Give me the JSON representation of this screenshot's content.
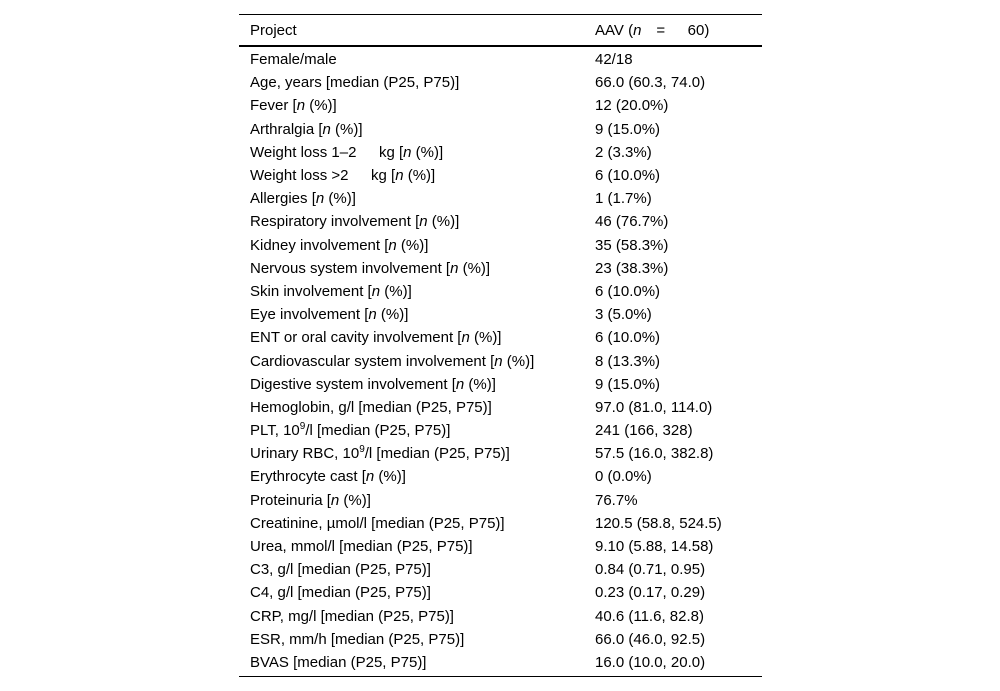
{
  "page": {
    "background_color": "#ffffff",
    "text_color": "#000000",
    "rule_color": "#000000"
  },
  "table": {
    "header": {
      "col1": "Project",
      "col2": "AAV (*n*  =   60)"
    },
    "rows": [
      {
        "label": "Female/male",
        "value": "42/18"
      },
      {
        "label": "Age, years [median (P25, P75)]",
        "value": "66.0 (60.3, 74.0)"
      },
      {
        "label": "Fever [*n* (%)]",
        "value": "12 (20.0%)"
      },
      {
        "label": "Arthralgia [*n* (%)]",
        "value": "9 (15.0%)"
      },
      {
        "label": "Weight loss 1–2   kg [*n* (%)]",
        "value": "2 (3.3%)"
      },
      {
        "label": "Weight loss >2   kg [*n* (%)]",
        "value": "6 (10.0%)"
      },
      {
        "label": "Allergies [*n* (%)]",
        "value": "1 (1.7%)"
      },
      {
        "label": "Respiratory involvement [*n* (%)]",
        "value": "46 (76.7%)"
      },
      {
        "label": "Kidney involvement [*n* (%)]",
        "value": "35 (58.3%)"
      },
      {
        "label": "Nervous system involvement [*n* (%)]",
        "value": "23 (38.3%)"
      },
      {
        "label": "Skin involvement [*n* (%)]",
        "value": "6 (10.0%)"
      },
      {
        "label": "Eye involvement [*n* (%)]",
        "value": "3 (5.0%)"
      },
      {
        "label": "ENT or oral cavity involvement [*n* (%)]",
        "value": "6 (10.0%)"
      },
      {
        "label": "Cardiovascular system involvement [*n* (%)]",
        "value": "8 (13.3%)"
      },
      {
        "label": "Digestive system involvement [*n* (%)]",
        "value": "9 (15.0%)"
      },
      {
        "label": "Hemoglobin, g/l [median (P25, P75)]",
        "value": "97.0 (81.0, 114.0)"
      },
      {
        "label": "PLT, 10^9^/l [median (P25, P75)]",
        "value": "241 (166, 328)"
      },
      {
        "label": "Urinary RBC, 10^9^/l [median (P25, P75)]",
        "value": "57.5 (16.0, 382.8)"
      },
      {
        "label": "Erythrocyte cast [*n* (%)]",
        "value": "0 (0.0%)"
      },
      {
        "label": "Proteinuria [*n* (%)]",
        "value": "76.7%"
      },
      {
        "label": "Creatinine, µmol/l [median (P25, P75)]",
        "value": "120.5 (58.8, 524.5)"
      },
      {
        "label": "Urea, mmol/l [median (P25, P75)]",
        "value": "9.10 (5.88, 14.58)"
      },
      {
        "label": "C3, g/l [median (P25, P75)]",
        "value": "0.84 (0.71, 0.95)"
      },
      {
        "label": "C4, g/l [median (P25, P75)]",
        "value": "0.23 (0.17, 0.29)"
      },
      {
        "label": "CRP, mg/l [median (P25, P75)]",
        "value": "40.6 (11.6, 82.8)"
      },
      {
        "label": "ESR, mm/h [median (P25, P75)]",
        "value": "66.0 (46.0, 92.5)"
      },
      {
        "label": "BVAS [median (P25, P75)]",
        "value": "16.0 (10.0, 20.0)"
      }
    ]
  }
}
